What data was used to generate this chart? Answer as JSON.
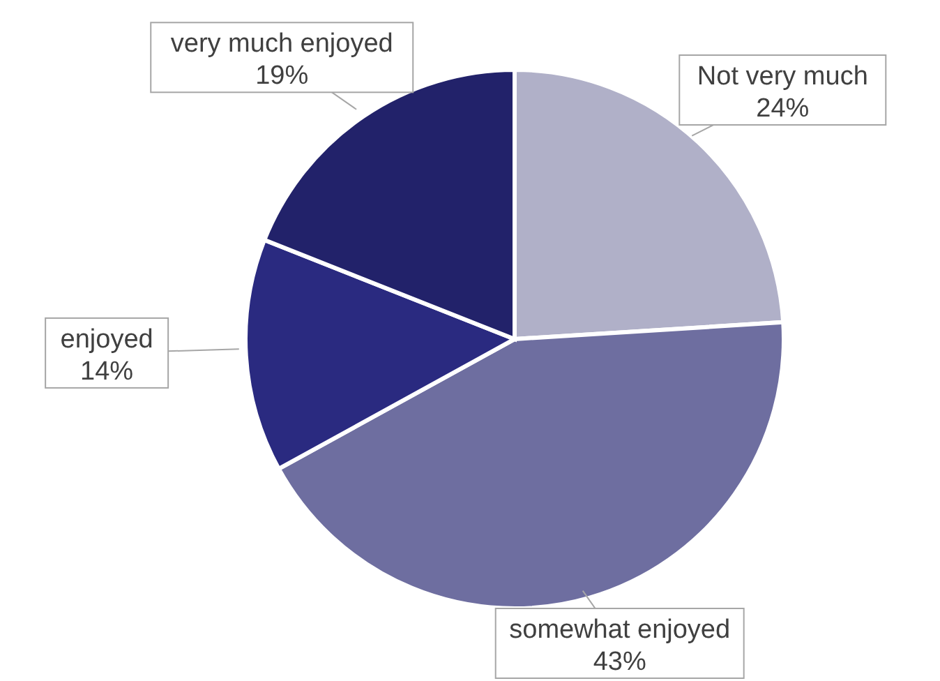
{
  "chart_data": {
    "type": "pie",
    "categories": [
      "Not very much",
      "somewhat enjoyed",
      "enjoyed",
      "very much enjoyed"
    ],
    "values": [
      24,
      43,
      14,
      19
    ],
    "value_labels": [
      "24%",
      "43%",
      "14%",
      "19%"
    ],
    "colors": [
      "#b0b0c8",
      "#6e6ea0",
      "#2a2a80",
      "#22226a"
    ],
    "legend": false
  }
}
